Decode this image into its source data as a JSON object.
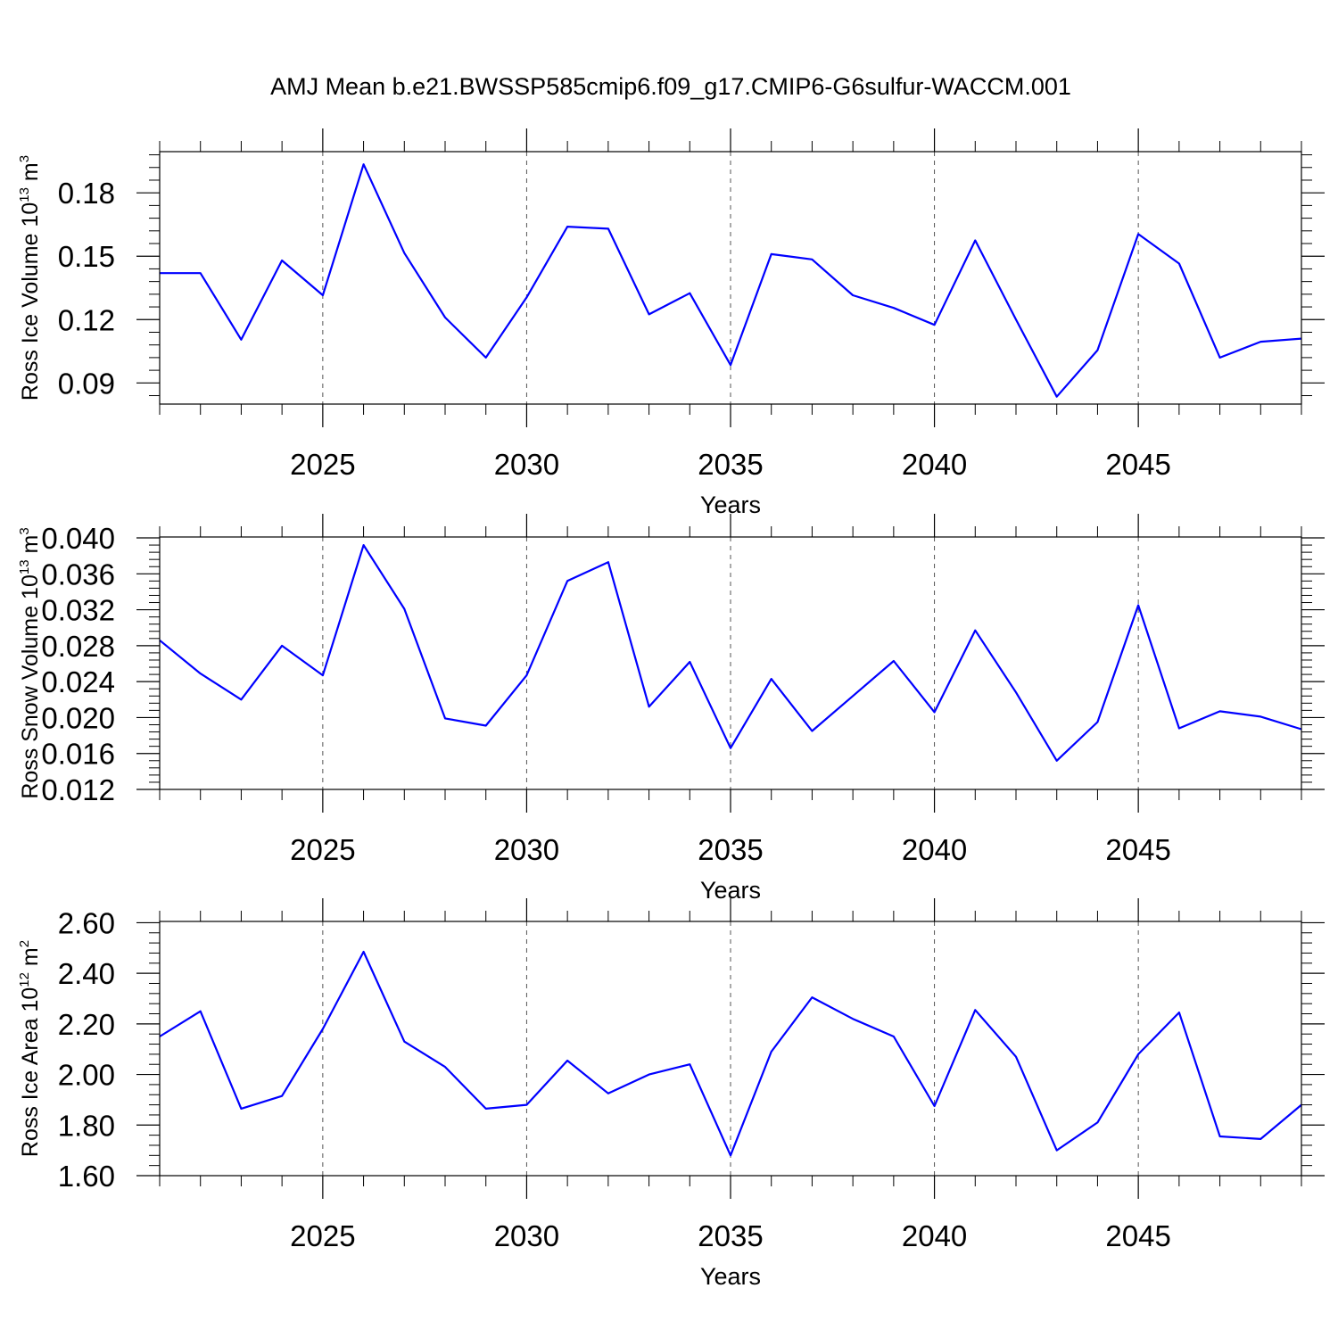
{
  "figure": {
    "title": "AMJ Mean b.e21.BWSSP585cmip6.f09_g17.CMIP6-G6sulfur-WACCM.001"
  },
  "style": {
    "line_color": "#0000ff",
    "grid_color": "#555555",
    "axis_color": "#000000"
  },
  "chart_data": [
    {
      "type": "line",
      "xlabel": "Years",
      "ylabel_main": "Ross Ice Volume 10",
      "ylabel_exp": "13",
      "ylabel_unit": " m",
      "ylabel_unit_exp": "3",
      "xlim": [
        2021,
        2049
      ],
      "ylim": [
        0.08,
        0.1995
      ],
      "yticks": [
        0.09,
        0.12,
        0.15,
        0.18
      ],
      "ytick_labels": [
        "0.09",
        "0.12",
        "0.15",
        "0.18"
      ],
      "xticks": [
        2025,
        2030,
        2035,
        2040,
        2045
      ],
      "xtick_labels": [
        "2025",
        "2030",
        "2035",
        "2040",
        "2045"
      ],
      "grid_x": true,
      "x": [
        2021,
        2022,
        2023,
        2024,
        2025,
        2026,
        2027,
        2028,
        2029,
        2030,
        2031,
        2032,
        2033,
        2034,
        2035,
        2036,
        2037,
        2038,
        2039,
        2040,
        2041,
        2042,
        2043,
        2044,
        2045,
        2046,
        2047,
        2048,
        2049
      ],
      "values": [
        0.142,
        0.142,
        0.1105,
        0.148,
        0.1315,
        0.1935,
        0.1515,
        0.121,
        0.102,
        0.1305,
        0.164,
        0.163,
        0.1225,
        0.1325,
        0.0985,
        0.151,
        0.1485,
        0.1315,
        0.1255,
        0.1175,
        0.1575,
        0.12,
        0.0835,
        0.1055,
        0.1605,
        0.1465,
        0.102,
        0.1095,
        0.111
      ]
    },
    {
      "type": "line",
      "xlabel": "Years",
      "ylabel_main": "Ross Snow Volume 10",
      "ylabel_exp": "13",
      "ylabel_unit": " m",
      "ylabel_unit_exp": "3",
      "xlim": [
        2021,
        2049
      ],
      "ylim": [
        0.012,
        0.0401
      ],
      "yticks": [
        0.012,
        0.016,
        0.02,
        0.024,
        0.028,
        0.032,
        0.036,
        0.04
      ],
      "ytick_labels": [
        "0.012",
        "0.016",
        "0.020",
        "0.024",
        "0.028",
        "0.032",
        "0.036",
        "0.040"
      ],
      "xticks": [
        2025,
        2030,
        2035,
        2040,
        2045
      ],
      "xtick_labels": [
        "2025",
        "2030",
        "2035",
        "2040",
        "2045"
      ],
      "grid_x": true,
      "x": [
        2021,
        2022,
        2023,
        2024,
        2025,
        2026,
        2027,
        2028,
        2029,
        2030,
        2031,
        2032,
        2033,
        2034,
        2035,
        2036,
        2037,
        2038,
        2039,
        2040,
        2041,
        2042,
        2043,
        2044,
        2045,
        2046,
        2047,
        2048,
        2049
      ],
      "values": [
        0.0286,
        0.0249,
        0.022,
        0.028,
        0.0247,
        0.0392,
        0.0321,
        0.0199,
        0.0191,
        0.0247,
        0.0352,
        0.0373,
        0.0212,
        0.0262,
        0.0166,
        0.0243,
        0.0185,
        0.0224,
        0.0263,
        0.0206,
        0.0297,
        0.0228,
        0.0152,
        0.0195,
        0.0325,
        0.0188,
        0.0207,
        0.0201,
        0.0187
      ]
    },
    {
      "type": "line",
      "xlabel": "Years",
      "ylabel_main": "Ross Ice Area 10",
      "ylabel_exp": "12",
      "ylabel_unit": " m",
      "ylabel_unit_exp": "2",
      "xlim": [
        2021,
        2049
      ],
      "ylim": [
        1.6,
        2.605
      ],
      "yticks": [
        1.6,
        1.8,
        2.0,
        2.2,
        2.4,
        2.6
      ],
      "ytick_labels": [
        "1.60",
        "1.80",
        "2.00",
        "2.20",
        "2.40",
        "2.60"
      ],
      "xticks": [
        2025,
        2030,
        2035,
        2040,
        2045
      ],
      "xtick_labels": [
        "2025",
        "2030",
        "2035",
        "2040",
        "2045"
      ],
      "grid_x": true,
      "x": [
        2021,
        2022,
        2023,
        2024,
        2025,
        2026,
        2027,
        2028,
        2029,
        2030,
        2031,
        2032,
        2033,
        2034,
        2035,
        2036,
        2037,
        2038,
        2039,
        2040,
        2041,
        2042,
        2043,
        2044,
        2045,
        2046,
        2047,
        2048,
        2049
      ],
      "values": [
        2.15,
        2.25,
        1.865,
        1.915,
        2.18,
        2.485,
        2.13,
        2.03,
        1.865,
        1.88,
        2.055,
        1.925,
        2.0,
        2.04,
        1.68,
        2.09,
        2.305,
        2.22,
        2.15,
        1.875,
        2.255,
        2.07,
        1.7,
        1.81,
        2.08,
        2.245,
        1.755,
        1.745,
        1.88
      ]
    }
  ]
}
